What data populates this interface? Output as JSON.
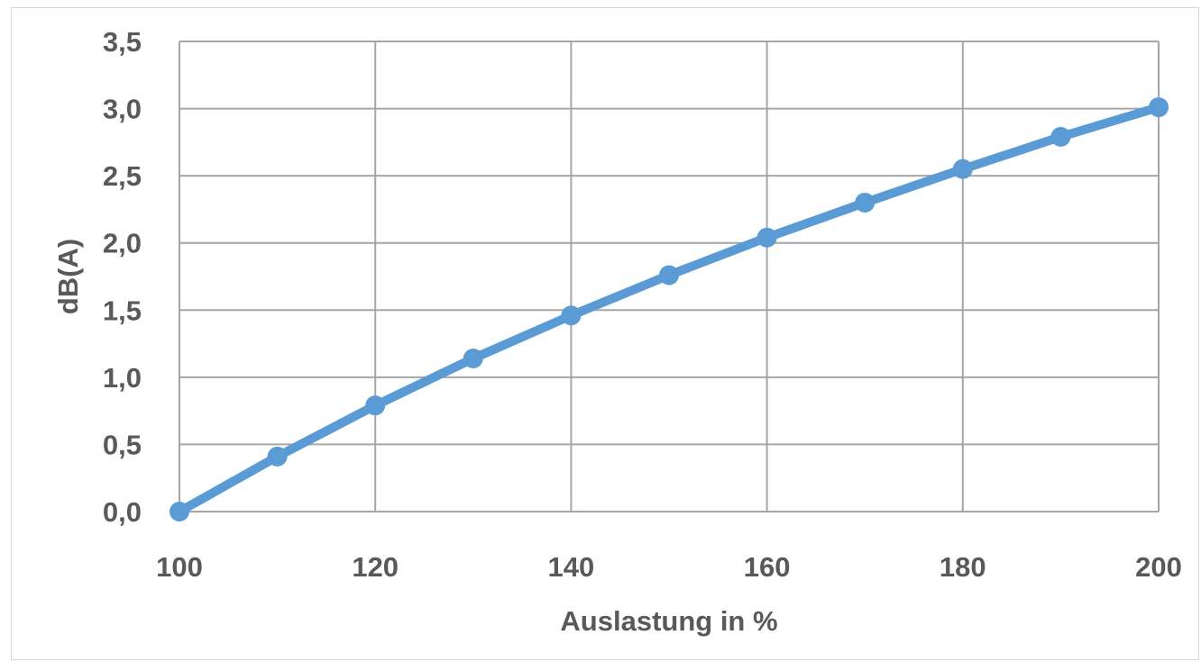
{
  "chart_data": {
    "type": "line",
    "title": "",
    "xlabel": "Auslastung in %",
    "ylabel": "dB(A)",
    "xlim": [
      100,
      200
    ],
    "ylim": [
      0,
      3.5
    ],
    "x_ticks": [
      100,
      120,
      140,
      160,
      180,
      200
    ],
    "x_tick_labels": [
      "100",
      "120",
      "140",
      "160",
      "180",
      "200"
    ],
    "y_ticks": [
      0,
      0.5,
      1,
      1.5,
      2,
      2.5,
      3,
      3.5
    ],
    "y_tick_labels": [
      "0,0",
      "0,5",
      "1,0",
      "1,5",
      "2,0",
      "2,5",
      "3,0",
      "3,5"
    ],
    "grid": true,
    "legend": "none",
    "series": [
      {
        "color": "#5b9bd5",
        "x": [
          100,
          110,
          120,
          130,
          140,
          150,
          160,
          170,
          180,
          190,
          200
        ],
        "y": [
          0.0,
          0.41,
          0.79,
          1.14,
          1.46,
          1.76,
          2.04,
          2.3,
          2.55,
          2.79,
          3.01
        ]
      }
    ]
  }
}
